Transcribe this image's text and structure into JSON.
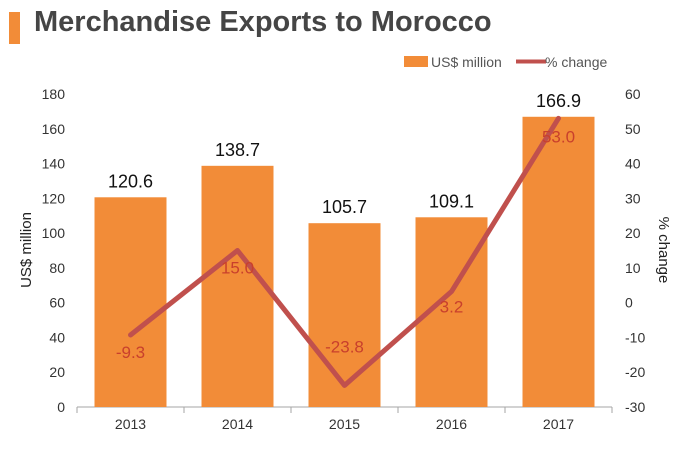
{
  "title": "Merchandise Exports to Morocco",
  "colors": {
    "accent": "#F28C38",
    "bar": "#F28C38",
    "line": "#C0504D",
    "pct_label": "#C9402C"
  },
  "chart_data": {
    "type": "bar",
    "categories": [
      "2013",
      "2014",
      "2015",
      "2016",
      "2017"
    ],
    "series": [
      {
        "name": "US$ million",
        "type": "bar",
        "axis": "left",
        "values": [
          120.6,
          138.7,
          105.7,
          109.1,
          166.9
        ],
        "labels": [
          "120.6",
          "138.7",
          "105.7",
          "109.1",
          "166.9"
        ]
      },
      {
        "name": "% change",
        "type": "line",
        "axis": "right",
        "values": [
          -9.3,
          15.0,
          -23.8,
          3.2,
          53.0
        ],
        "labels": [
          "-9.3",
          "15.0",
          "-23.8",
          "3.2",
          "53.0"
        ]
      }
    ],
    "ylabel": "US$ million",
    "y2label": "% change",
    "ylim": [
      0,
      180
    ],
    "y2lim": [
      -30,
      60
    ],
    "yticks": [
      "0",
      "20",
      "40",
      "60",
      "80",
      "100",
      "120",
      "140",
      "160",
      "180"
    ],
    "y2ticks": [
      "-30",
      "-20",
      "-10",
      "0",
      "10",
      "20",
      "30",
      "40",
      "50",
      "60"
    ],
    "grid": false,
    "legend_position": "top-right"
  }
}
